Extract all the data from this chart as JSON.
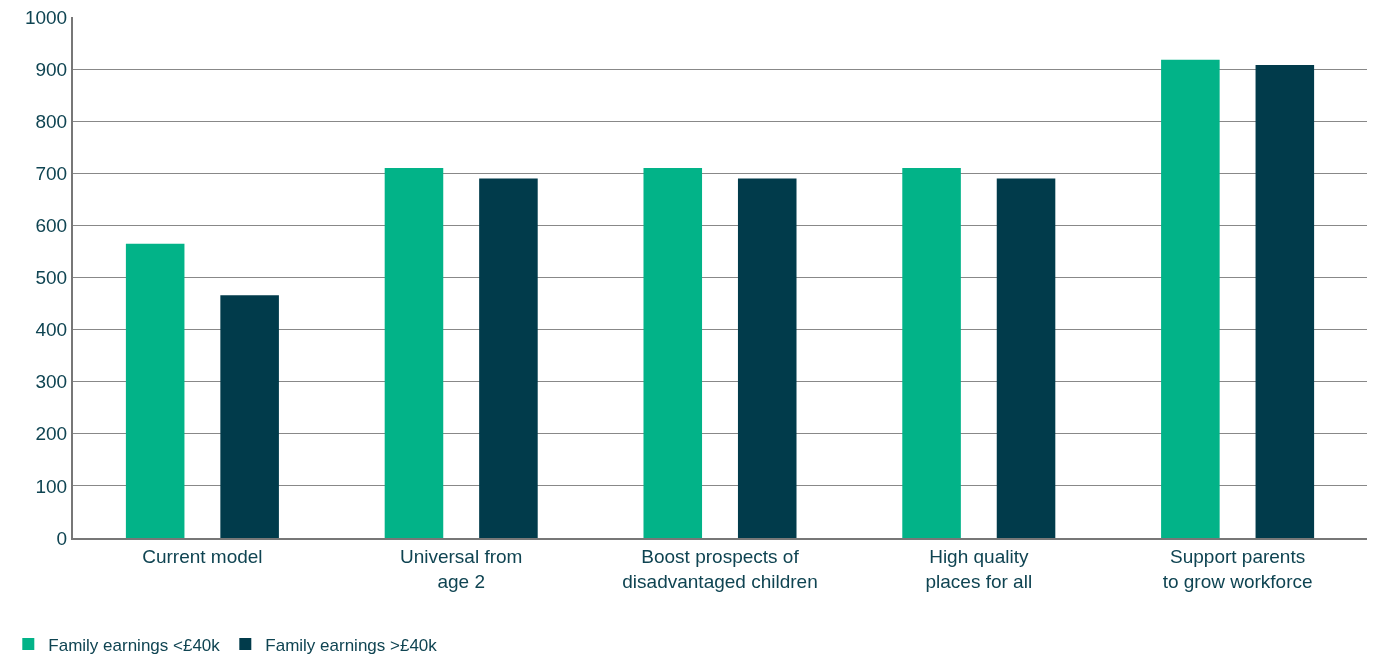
{
  "chart_data": {
    "type": "bar",
    "categories": [
      "Current model",
      "Universal from\nage 2",
      "Boost prospects of\ndisadvantaged children",
      "High quality\nplaces for all",
      "Support parents\nto grow workforce"
    ],
    "series": [
      {
        "name": "Family earnings <£40k",
        "color": "#02b388",
        "values": [
          565,
          710,
          710,
          710,
          918
        ]
      },
      {
        "name": "Family earnings >£40k",
        "color": "#013b4b",
        "values": [
          466,
          690,
          690,
          690,
          908
        ]
      }
    ],
    "ylim": [
      0,
      1000
    ],
    "yticks": [
      0,
      100,
      200,
      300,
      400,
      500,
      600,
      700,
      800,
      900,
      1000
    ],
    "grid": "y",
    "legend": "bottom left"
  }
}
